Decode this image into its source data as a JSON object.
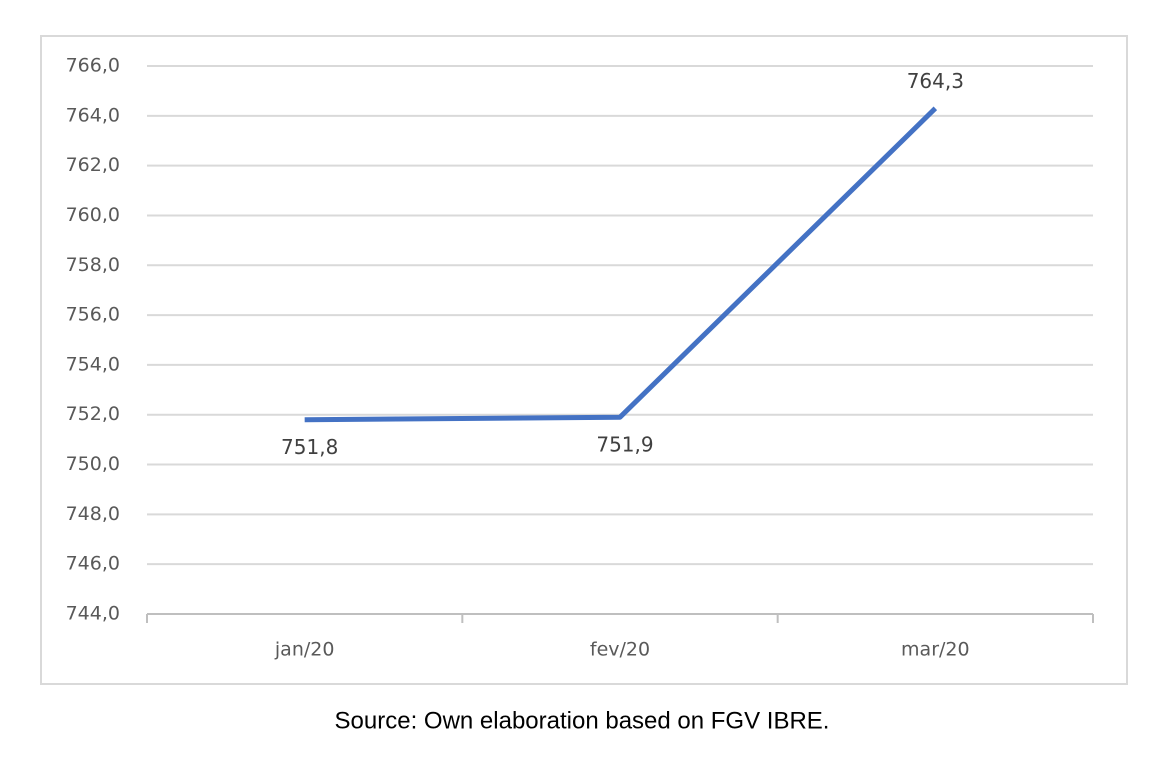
{
  "chart_data": {
    "type": "line",
    "categories": [
      "jan/20",
      "fev/20",
      "mar/20"
    ],
    "values": [
      751.8,
      751.9,
      764.3
    ],
    "value_labels": [
      "751,8",
      "751,9",
      "764,3"
    ],
    "color": "#4472c4",
    "ylim": [
      744,
      766
    ],
    "yticks": [
      {
        "value": 744,
        "label": "744,0"
      },
      {
        "value": 746,
        "label": "746,0"
      },
      {
        "value": 748,
        "label": "748,0"
      },
      {
        "value": 750,
        "label": "750,0"
      },
      {
        "value": 752,
        "label": "752,0"
      },
      {
        "value": 754,
        "label": "754,0"
      },
      {
        "value": 756,
        "label": "756,0"
      },
      {
        "value": 758,
        "label": "758,0"
      },
      {
        "value": 760,
        "label": "760,0"
      },
      {
        "value": 762,
        "label": "762,0"
      },
      {
        "value": 764,
        "label": "764,0"
      },
      {
        "value": 766,
        "label": "766,0"
      }
    ],
    "grid": true,
    "source": "Source: Own elaboration based on FGV IBRE."
  }
}
